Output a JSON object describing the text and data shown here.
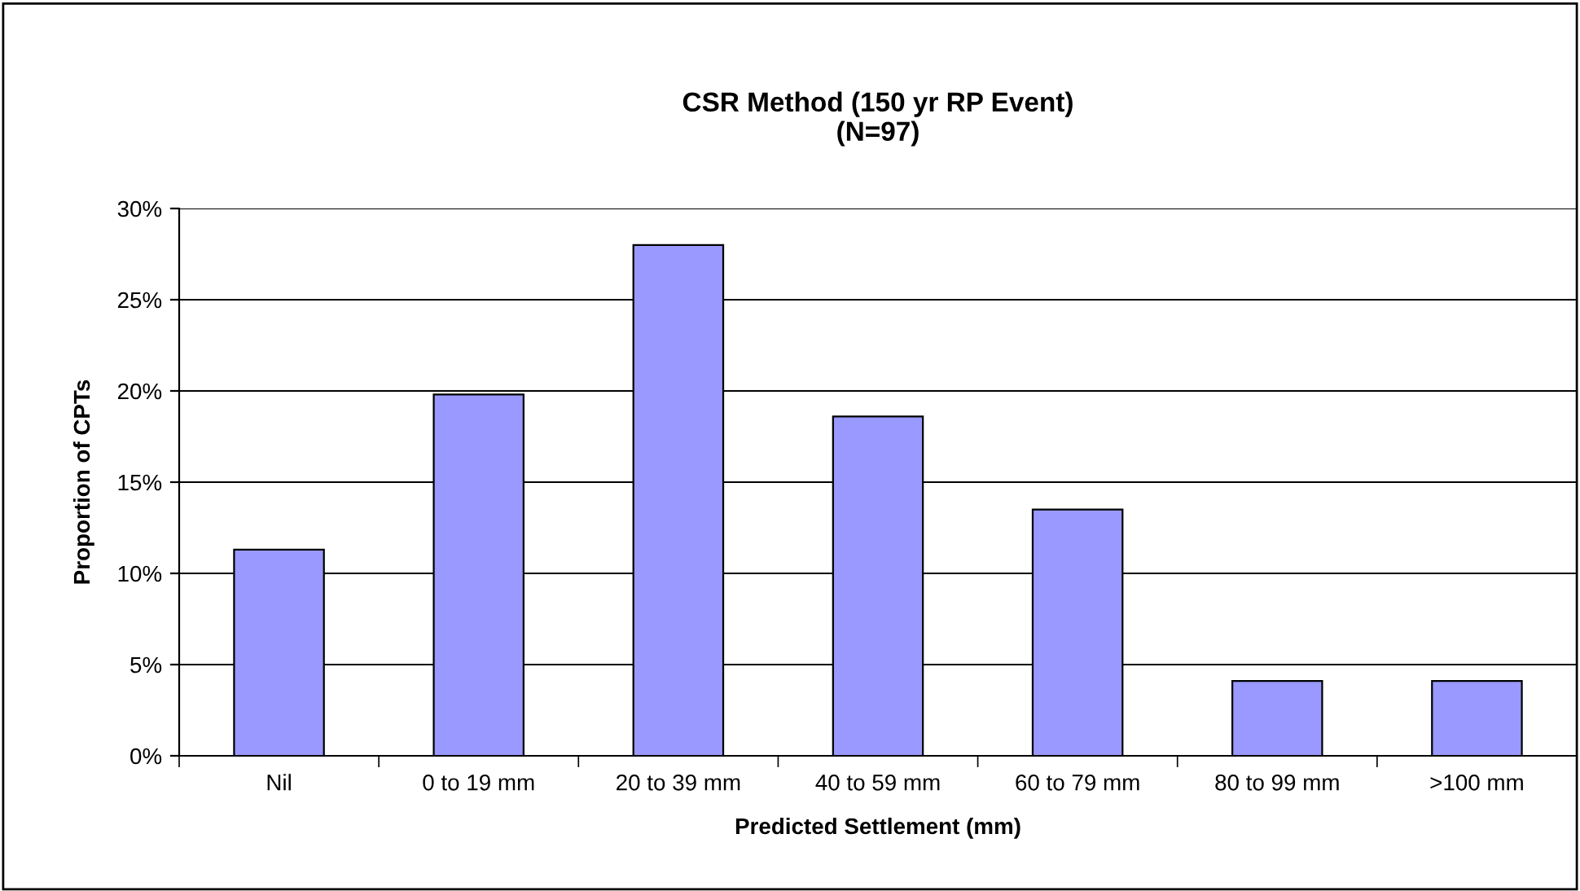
{
  "chart_data": {
    "type": "bar",
    "title": "CSR Method (150 yr RP Event)\n(N=97)",
    "xlabel": "Predicted Settlement (mm)",
    "ylabel": "Proportion of CPTs",
    "categories": [
      "Nil",
      "0 to 19 mm",
      "20 to 39 mm",
      "40 to 59 mm",
      "60 to 79 mm",
      "80 to 99 mm",
      ">100 mm"
    ],
    "values": [
      11.3,
      19.8,
      28.0,
      18.6,
      13.5,
      4.1,
      4.1
    ],
    "color": "#9999ff",
    "ylim": [
      0,
      30
    ],
    "yticks": [
      {
        "value": 0,
        "label": "0%"
      },
      {
        "value": 5,
        "label": "5%"
      },
      {
        "value": 10,
        "label": "10%"
      },
      {
        "value": 15,
        "label": "15%"
      },
      {
        "value": 20,
        "label": "20%"
      },
      {
        "value": 25,
        "label": "25%"
      },
      {
        "value": 30,
        "label": "30%"
      }
    ],
    "grid": "y",
    "legend": false
  }
}
